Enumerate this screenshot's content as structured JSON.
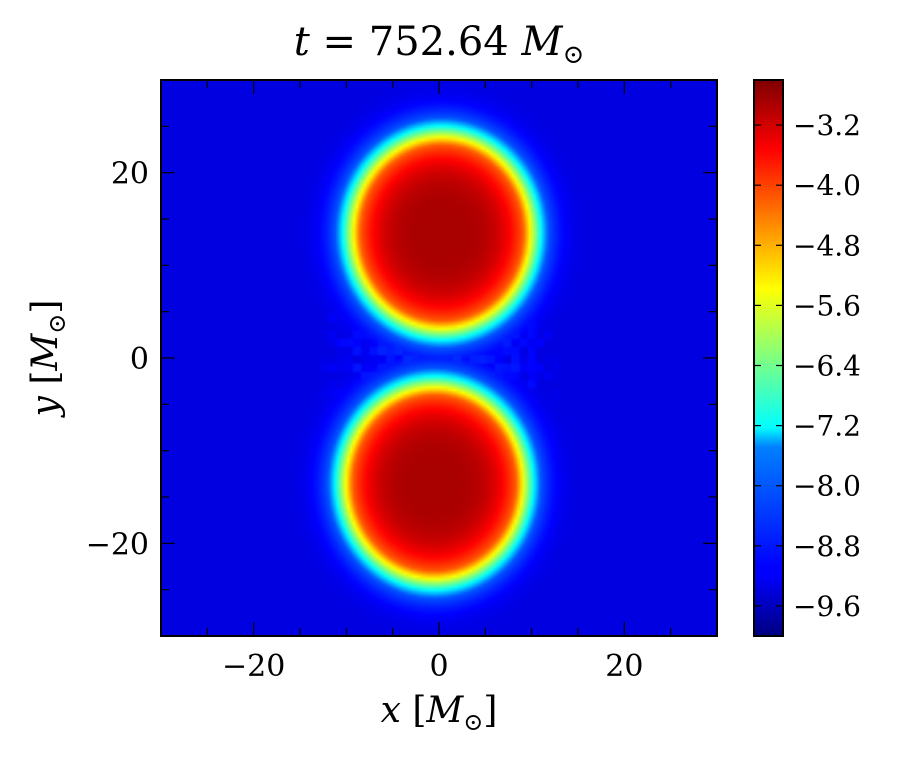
{
  "chart_data": {
    "type": "heatmap",
    "title": {
      "var": "t",
      "eq": " = ",
      "value": "752.64",
      "unit_var": "M",
      "unit_sub": "⊙"
    },
    "xlabel": {
      "var": "x",
      "unit": "M",
      "sub": "⊙"
    },
    "ylabel": {
      "var": "y",
      "unit": "M",
      "sub": "⊙"
    },
    "xlim": [
      -30,
      30
    ],
    "ylim": [
      -30,
      30
    ],
    "xticks": [
      -20,
      0,
      20
    ],
    "yticks": [
      -20,
      0,
      20
    ],
    "xtick_labels": [
      "−20",
      "0",
      "20"
    ],
    "ytick_labels": [
      "−20",
      "0",
      "20"
    ],
    "colormap": "jet",
    "colorbar_range": [
      -10.0,
      -2.6
    ],
    "colorbar_ticks": [
      -3.2,
      -4.0,
      -4.8,
      -5.6,
      -6.4,
      -7.2,
      -8.0,
      -8.8,
      -9.6
    ],
    "colorbar_tick_labels": [
      "−3.2",
      "−4.0",
      "−4.8",
      "−5.6",
      "−6.4",
      "−7.2",
      "−8.0",
      "−8.8",
      "−9.6"
    ],
    "background_value": -9.9,
    "blobs": [
      {
        "name": "upper-star",
        "cx": 0.3,
        "cy": 13.5,
        "rx": 8.8,
        "ry": 9.5,
        "peak": -2.9
      },
      {
        "name": "lower-star",
        "cx": -0.5,
        "cy": -13.5,
        "rx": 8.8,
        "ry": 9.5,
        "peak": -2.9
      }
    ],
    "halo": {
      "cx": 0,
      "cy": 0,
      "rx": 14,
      "ry": 27,
      "value": -9.0
    },
    "grid": false,
    "colors": {
      "frame": "#000000",
      "background": "#ffffff"
    }
  }
}
